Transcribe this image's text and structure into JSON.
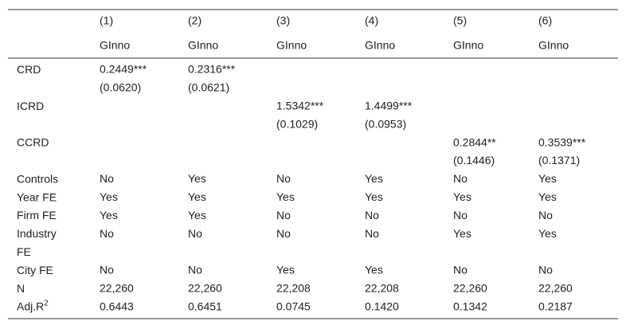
{
  "table": {
    "header": [
      [
        "(1)",
        "(2)",
        "(3)",
        "(4)",
        "(5)",
        "(6)"
      ],
      [
        "GInno",
        "GInno",
        "GInno",
        "GInno",
        "GInno",
        "GInno"
      ]
    ],
    "rows": [
      {
        "label": [
          "CRD"
        ],
        "cells": [
          [
            "0.2449***",
            "(0.0620)"
          ],
          [
            "0.2316***",
            "(0.0621)"
          ],
          null,
          null,
          null,
          null
        ]
      },
      {
        "label": [
          "ICRD"
        ],
        "cells": [
          null,
          null,
          [
            "1.5342***",
            "(0.1029)"
          ],
          [
            "1.4499***",
            "(0.0953)"
          ],
          null,
          null
        ]
      },
      {
        "label": [
          "CCRD"
        ],
        "cells": [
          null,
          null,
          null,
          null,
          [
            "0.2844**",
            "(0.1446)"
          ],
          [
            "0.3539***",
            "(0.1371)"
          ]
        ]
      },
      {
        "label": [
          "Controls"
        ],
        "cells": [
          [
            "No"
          ],
          [
            "Yes"
          ],
          [
            "No"
          ],
          [
            "Yes"
          ],
          [
            "No"
          ],
          [
            "Yes"
          ]
        ]
      },
      {
        "label": [
          "Year FE"
        ],
        "cells": [
          [
            "Yes"
          ],
          [
            "Yes"
          ],
          [
            "Yes"
          ],
          [
            "Yes"
          ],
          [
            "Yes"
          ],
          [
            "Yes"
          ]
        ]
      },
      {
        "label": [
          "Firm FE"
        ],
        "cells": [
          [
            "Yes"
          ],
          [
            "Yes"
          ],
          [
            "No"
          ],
          [
            "No"
          ],
          [
            "No"
          ],
          [
            "No"
          ]
        ]
      },
      {
        "label": [
          "Industry",
          "FE"
        ],
        "cells": [
          [
            "No"
          ],
          [
            "No"
          ],
          [
            "No"
          ],
          [
            "No"
          ],
          [
            "Yes"
          ],
          [
            "Yes"
          ]
        ]
      },
      {
        "label": [
          "City FE"
        ],
        "cells": [
          [
            "No"
          ],
          [
            "No"
          ],
          [
            "Yes"
          ],
          [
            "Yes"
          ],
          [
            "No"
          ],
          [
            "No"
          ]
        ]
      },
      {
        "label": [
          "N"
        ],
        "cells": [
          [
            "22,260"
          ],
          [
            "22,260"
          ],
          [
            "22,208"
          ],
          [
            "22,208"
          ],
          [
            "22,260"
          ],
          [
            "22,260"
          ]
        ]
      },
      {
        "label": [
          "Adj.R"
        ],
        "label_sup": "2",
        "cells": [
          [
            "0.6443"
          ],
          [
            "0.6451"
          ],
          [
            "0.0745"
          ],
          [
            "0.1420"
          ],
          [
            "0.1342"
          ],
          [
            "0.2187"
          ]
        ]
      }
    ]
  }
}
